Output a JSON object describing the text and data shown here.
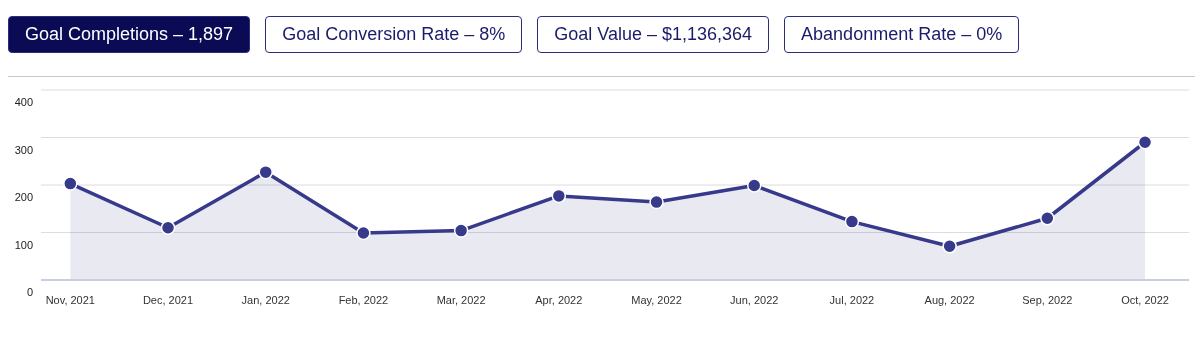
{
  "chart_data": {
    "type": "area",
    "title": "Goal Completions – 1,897",
    "annotations": [
      "Goal Conversion Rate – 8%",
      "Goal Value – $1,136,364",
      "Abandonment Rate – 0%"
    ],
    "categories": [
      "Nov, 2021",
      "Dec, 2021",
      "Jan, 2022",
      "Feb, 2022",
      "Mar, 2022",
      "Apr, 2022",
      "May, 2022",
      "Jun, 2022",
      "Jul, 2022",
      "Aug, 2022",
      "Sep, 2022",
      "Oct, 2022"
    ],
    "series": [
      {
        "color": "#37398a",
        "values": [
          203,
          110,
          227,
          99,
          104,
          177,
          164,
          199,
          123,
          71,
          130,
          290
        ]
      }
    ],
    "ylim": [
      0,
      400
    ],
    "yticks": [
      0,
      100,
      200,
      300,
      400
    ],
    "grid": "y",
    "marker": "circle",
    "line_style": "solid"
  }
}
